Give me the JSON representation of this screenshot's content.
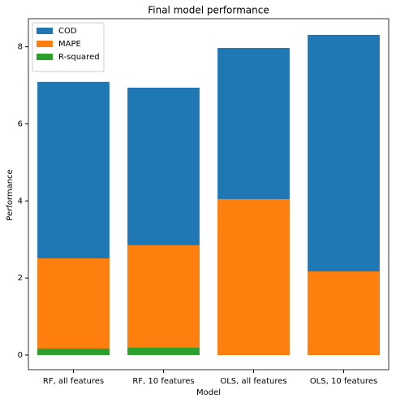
{
  "chart_data": {
    "type": "bar",
    "barmode": "overlay",
    "title": "Final model performance",
    "xlabel": "Model",
    "ylabel": "Performance",
    "categories": [
      "RF, all features",
      "RF, 10 features",
      "OLS, all features",
      "OLS, 10 features"
    ],
    "series": [
      {
        "name": "COD",
        "color": "#1f77b4",
        "values": [
          7.09,
          6.94,
          7.97,
          8.31
        ]
      },
      {
        "name": "MAPE",
        "color": "#ff7f0e",
        "values": [
          2.51,
          2.85,
          4.05,
          2.17
        ]
      },
      {
        "name": "R-squared",
        "color": "#2ca02c",
        "values": [
          0.17,
          0.19,
          0,
          0
        ]
      }
    ],
    "ylim": [
      -0.38,
      8.73
    ],
    "yticks": [
      0,
      2,
      4,
      6,
      8
    ],
    "legend": "upper left"
  }
}
